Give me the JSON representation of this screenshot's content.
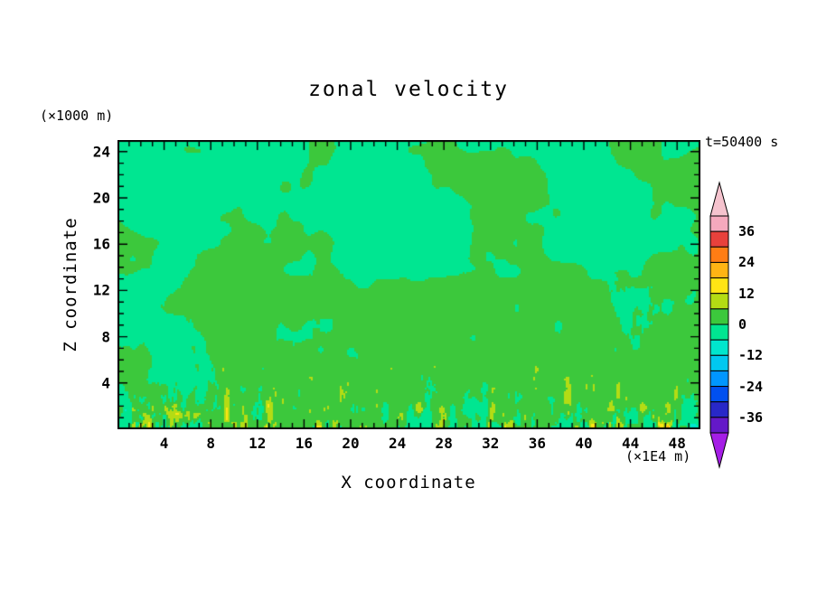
{
  "chart_data": {
    "type": "heatmap",
    "title": "zonal velocity",
    "xlabel": "X coordinate",
    "ylabel": "Z coordinate",
    "x_unit_label": "(×1E4 m)",
    "y_unit_label": "(×1000 m)",
    "time_label": "t=50400 s",
    "x_range": [
      0,
      50
    ],
    "y_range": [
      0,
      25
    ],
    "x_tick_interval_minor": 1,
    "x_tick_interval_major": 4,
    "y_tick_interval_minor": 1,
    "y_tick_interval_major": 4,
    "x_tick_labels": [
      "4",
      "8",
      "12",
      "16",
      "20",
      "24",
      "28",
      "32",
      "36",
      "40",
      "44",
      "48"
    ],
    "y_tick_labels": [
      "4",
      "8",
      "12",
      "16",
      "20",
      "24"
    ],
    "grid": false,
    "legend_position": "right",
    "colorbar": {
      "labels": [
        "36",
        "24",
        "12",
        "0",
        "-12",
        "-24",
        "-36"
      ],
      "level_min": -42,
      "level_max": 42,
      "level_step": 6,
      "colors_low_to_high": [
        "#a51ee6",
        "#6419c8",
        "#2828c8",
        "#0050f0",
        "#0096ff",
        "#00c8f0",
        "#00e6cd",
        "#00e691",
        "#3cc83c",
        "#b4dc14",
        "#ffe414",
        "#ffb414",
        "#ff7d14",
        "#e8413c",
        "#f5a9bd",
        "#f5c3ce"
      ]
    },
    "field_summary": {
      "description": "Turbulent zonal-velocity cross-section: interior dominated by values between -6 and 6 (two green fill levels forming large irregular blobs); fine vertical streaks reaching ~12 to 30 (yellow-green, yellow, orange) concentrated in the lowest ~5 (×1000 m) near the bottom boundary",
      "dominant_level_colors": [
        "#00e691",
        "#3cc83c"
      ],
      "background_value_range": [
        -6,
        6
      ],
      "bottom_streak_value_range": [
        -12,
        30
      ]
    }
  }
}
